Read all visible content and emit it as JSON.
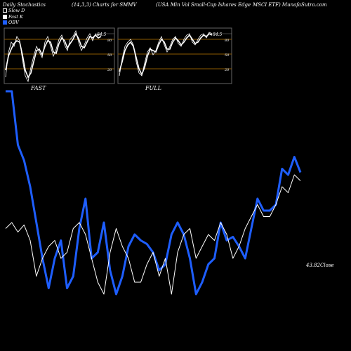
{
  "header": {
    "left": "Daily Stochastics",
    "mid": "(14,3,3) Charts for SMMV",
    "right": "(USA Min Vol Small-Cap Ishares Edge",
    "right2": "MSCI ETF) MunafaSutra.com"
  },
  "legend": [
    {
      "label": "Slow D",
      "color": "#000000"
    },
    {
      "label": "Fast K",
      "color": "#ffffff"
    },
    {
      "label": "OBV",
      "color": "#1e5eff"
    }
  ],
  "panels": [
    {
      "caption": "FAST",
      "value_label": "84.5",
      "levels": [
        "80",
        "50",
        "20"
      ]
    },
    {
      "caption": "FULL",
      "value_label": "84.5",
      "levels": [
        "80",
        "50",
        "20"
      ]
    }
  ],
  "close_label": "43.82Close",
  "colors": {
    "obv": "#1e5eff",
    "price": "#ffffff",
    "panel_line": "#8b5a00"
  },
  "chart_data": {
    "type": "line",
    "series": [
      {
        "name": "OBV",
        "values": [
          100,
          100,
          55,
          42,
          20,
          -10,
          -40,
          -65,
          -40,
          -25,
          -65,
          -55,
          -15,
          10,
          -40,
          -35,
          -10,
          -50,
          -70,
          -55,
          -30,
          -20,
          -25,
          -28,
          -35,
          -50,
          -45,
          -20,
          -10,
          -20,
          -40,
          -70,
          -60,
          -45,
          -40,
          -10,
          -25,
          -22,
          -30,
          -40,
          -15,
          10,
          0,
          0,
          5,
          35,
          30,
          45,
          32
        ]
      },
      {
        "name": "Close",
        "values": [
          -15,
          -10,
          -18,
          -12,
          -25,
          -55,
          -40,
          -30,
          -25,
          -40,
          -35,
          -15,
          -10,
          -20,
          -40,
          -60,
          -70,
          -35,
          -15,
          -30,
          -40,
          -60,
          -60,
          -45,
          -35,
          -55,
          -40,
          -70,
          -35,
          -20,
          -15,
          -40,
          -30,
          -20,
          -25,
          -10,
          -20,
          -40,
          -30,
          -15,
          -5,
          5,
          -5,
          -5,
          5,
          20,
          15,
          30,
          25
        ]
      }
    ]
  }
}
